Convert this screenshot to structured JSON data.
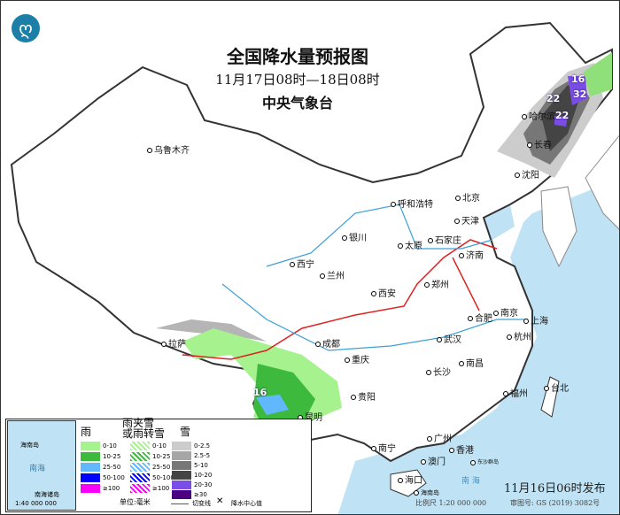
{
  "header": {
    "title": "全国降水量预报图",
    "period": "11月17日08时—18日08时",
    "agency": "中央气象台",
    "logo_icon": "cma-logo"
  },
  "cities": [
    "乌鲁木齐",
    "哈尔滨",
    "长春",
    "沈阳",
    "北京",
    "天津",
    "呼和浩特",
    "石家庄",
    "太原",
    "济南",
    "银川",
    "西宁",
    "兰州",
    "西安",
    "郑州",
    "合肥",
    "南京",
    "上海",
    "杭州",
    "武汉",
    "成都",
    "重庆",
    "拉萨",
    "长沙",
    "南昌",
    "福州",
    "台北",
    "贵阳",
    "昆明",
    "南宁",
    "广州",
    "澳门",
    "香港",
    "海口"
  ],
  "center_values": [
    "16",
    "32",
    "22",
    "22",
    "16"
  ],
  "legend": {
    "rain_title": "雨",
    "mix_title": "雨夹雪\n或雨转雪",
    "snow_title": "雪",
    "rain": [
      {
        "label": "0-10",
        "color": "#a6f28f"
      },
      {
        "label": "10-25",
        "color": "#3db93d"
      },
      {
        "label": "25-50",
        "color": "#61b8ff"
      },
      {
        "label": "50-100",
        "color": "#0000fe"
      },
      {
        "label": "≥100",
        "color": "#fa00fa"
      }
    ],
    "mix": [
      {
        "label": "0-10",
        "color": "#a6f28f"
      },
      {
        "label": "10-25",
        "color": "#3db93d"
      },
      {
        "label": "25-50",
        "color": "#61b8ff"
      },
      {
        "label": "50-100",
        "color": "#0000fe"
      },
      {
        "label": "≥100",
        "color": "#fa00fa"
      }
    ],
    "snow": [
      {
        "label": "0-2.5",
        "color": "#cccccc"
      },
      {
        "label": "2.5-5",
        "color": "#a6a6a6"
      },
      {
        "label": "5-10",
        "color": "#777777"
      },
      {
        "label": "10-20",
        "color": "#444444"
      },
      {
        "label": "20-30",
        "color": "#7a4de6"
      },
      {
        "label": "≥30",
        "color": "#4b0082"
      }
    ],
    "unit": "单位:毫米",
    "shear_line": "切变线",
    "center_value": "降水中心值",
    "inset": {
      "sea": "南海",
      "islands": "南海诸岛",
      "scale": "1:40 000 000",
      "hainan": "海南岛"
    }
  },
  "map_labels": {
    "south_sea": "南 海",
    "hainan": "海南岛",
    "dongsha": "东沙群岛"
  },
  "footer": {
    "issued": "11月16日06时发布",
    "scale": "比例尺 1:20 000 000",
    "map_no": "审图号: GS (2019) 3082号"
  }
}
